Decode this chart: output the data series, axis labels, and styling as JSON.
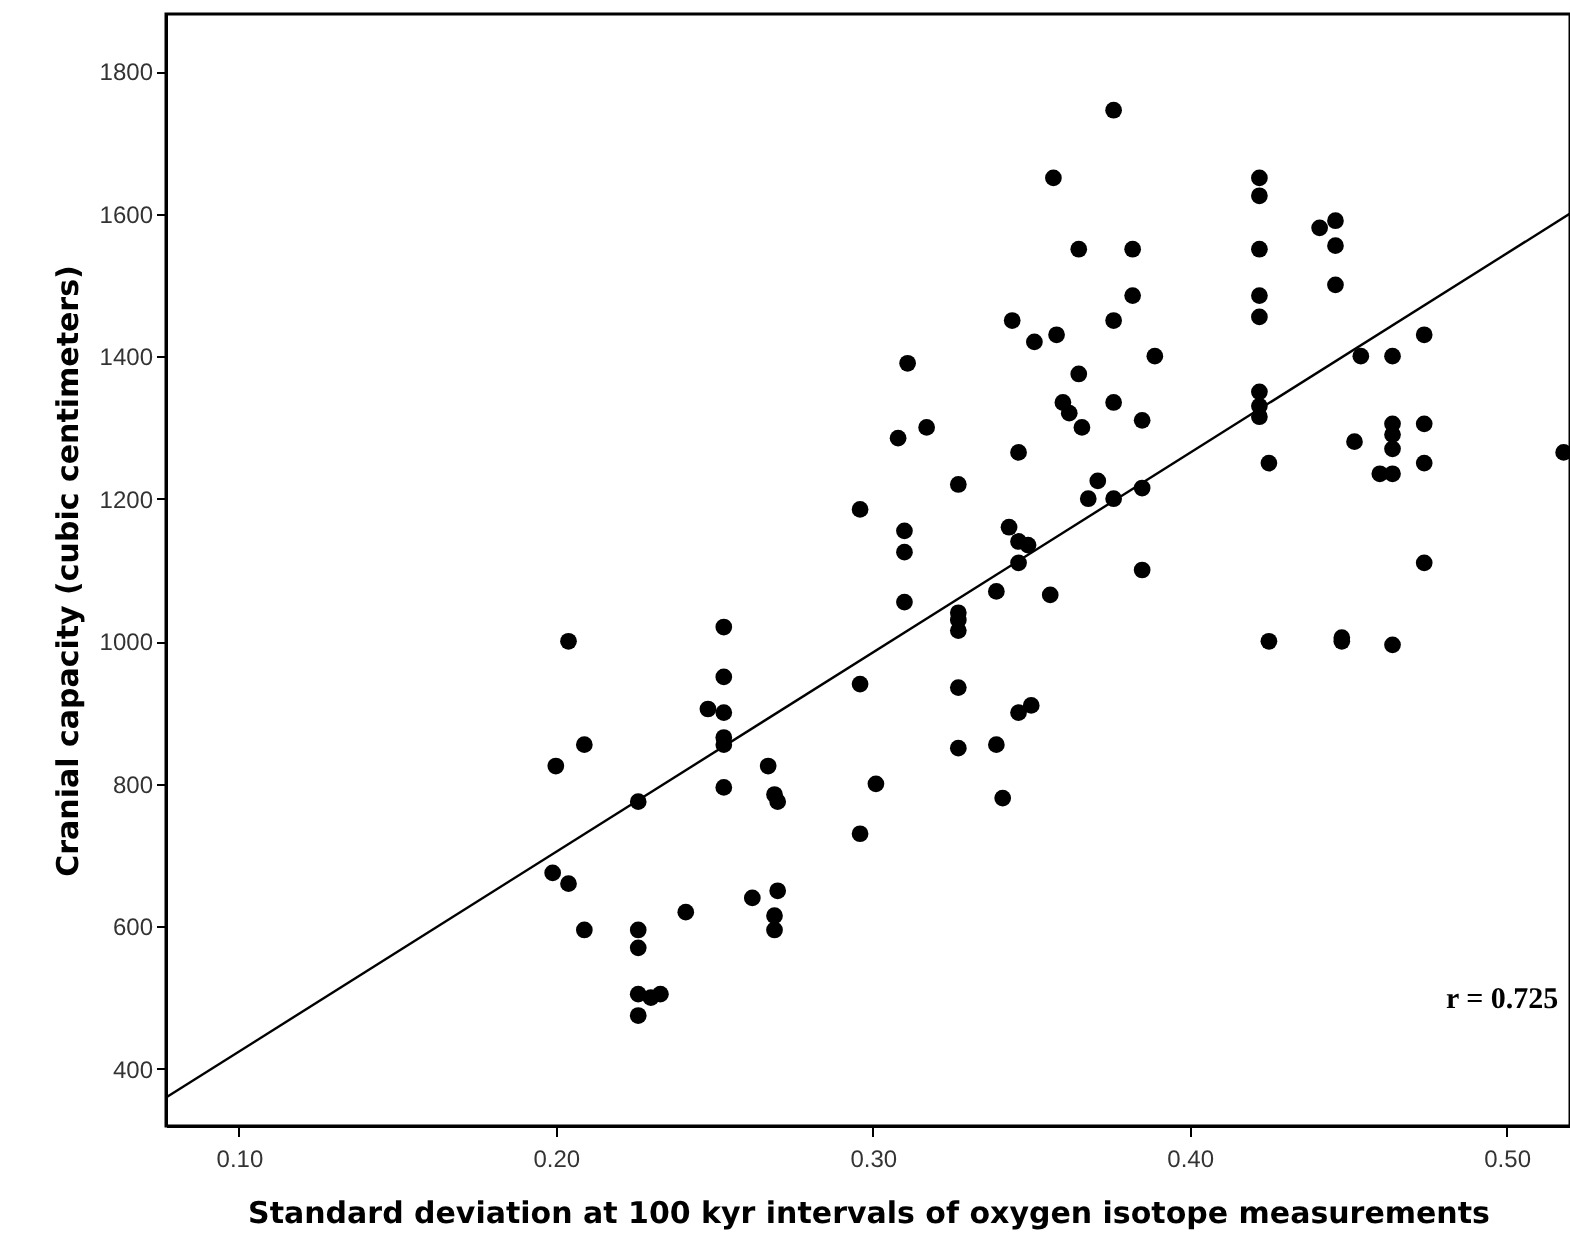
{
  "chart_data": {
    "type": "scatter",
    "xlabel": "Standard deviation at 100 kyr intervals of oxygen isotope measurements",
    "ylabel": "Cranial capacity (cubic centimeters)",
    "xlim": [
      0.077,
      0.52
    ],
    "ylim": [
      320,
      1880
    ],
    "xticks": [
      {
        "value": 0.1,
        "label": "0.10"
      },
      {
        "value": 0.2,
        "label": "0.20"
      },
      {
        "value": 0.3,
        "label": "0.30"
      },
      {
        "value": 0.4,
        "label": "0.40"
      },
      {
        "value": 0.5,
        "label": "0.50"
      }
    ],
    "yticks": [
      400,
      600,
      800,
      1000,
      1200,
      1400,
      1600,
      1800
    ],
    "grid": false,
    "annotations": [
      "r = 0.725"
    ],
    "series": [
      {
        "color": "#000000",
        "marker": "circle",
        "x": [
          0.204,
          0.2,
          0.209,
          0.199,
          0.204,
          0.209,
          0.226,
          0.226,
          0.226,
          0.226,
          0.23,
          0.233,
          0.226,
          0.241,
          0.248,
          0.253,
          0.253,
          0.253,
          0.253,
          0.253,
          0.253,
          0.262,
          0.267,
          0.269,
          0.27,
          0.27,
          0.269,
          0.269,
          0.296,
          0.296,
          0.301,
          0.327,
          0.327,
          0.327,
          0.327,
          0.327,
          0.339,
          0.341,
          0.346,
          0.35,
          0.31,
          0.356,
          0.425,
          0.448,
          0.448,
          0.464,
          0.376,
          0.357,
          0.365,
          0.382,
          0.382,
          0.376,
          0.344,
          0.351,
          0.358,
          0.389,
          0.311,
          0.365,
          0.36,
          0.362,
          0.366,
          0.376,
          0.385,
          0.308,
          0.317,
          0.346,
          0.327,
          0.296,
          0.31,
          0.31,
          0.339,
          0.343,
          0.346,
          0.346,
          0.349,
          0.371,
          0.368,
          0.376,
          0.385,
          0.385,
          0.422,
          0.422,
          0.422,
          0.422,
          0.422,
          0.422,
          0.422,
          0.422,
          0.425,
          0.441,
          0.446,
          0.446,
          0.446,
          0.454,
          0.464,
          0.474,
          0.452,
          0.464,
          0.464,
          0.464,
          0.46,
          0.464,
          0.474,
          0.474,
          0.474,
          0.518
        ],
        "values": [
          1000,
          825,
          855,
          675,
          660,
          595,
          775,
          595,
          570,
          505,
          500,
          505,
          475,
          620,
          905,
          1020,
          950,
          900,
          865,
          855,
          795,
          640,
          825,
          785,
          775,
          650,
          615,
          595,
          940,
          730,
          800,
          1040,
          1030,
          1015,
          935,
          850,
          855,
          780,
          900,
          910,
          1055,
          1065,
          1000,
          1005,
          1000,
          995,
          1745,
          1650,
          1550,
          1550,
          1485,
          1450,
          1450,
          1420,
          1430,
          1400,
          1390,
          1375,
          1335,
          1320,
          1300,
          1335,
          1310,
          1285,
          1300,
          1265,
          1220,
          1185,
          1155,
          1125,
          1070,
          1160,
          1140,
          1110,
          1135,
          1225,
          1200,
          1200,
          1215,
          1100,
          1650,
          1625,
          1550,
          1485,
          1455,
          1350,
          1330,
          1315,
          1250,
          1580,
          1590,
          1555,
          1500,
          1400,
          1400,
          1430,
          1280,
          1305,
          1290,
          1270,
          1235,
          1235,
          1305,
          1250,
          1110,
          1265
        ]
      },
      {
        "type": "line",
        "color": "#000000",
        "x": [
          0.077,
          0.52
        ],
        "values": [
          360,
          1600
        ]
      }
    ]
  }
}
